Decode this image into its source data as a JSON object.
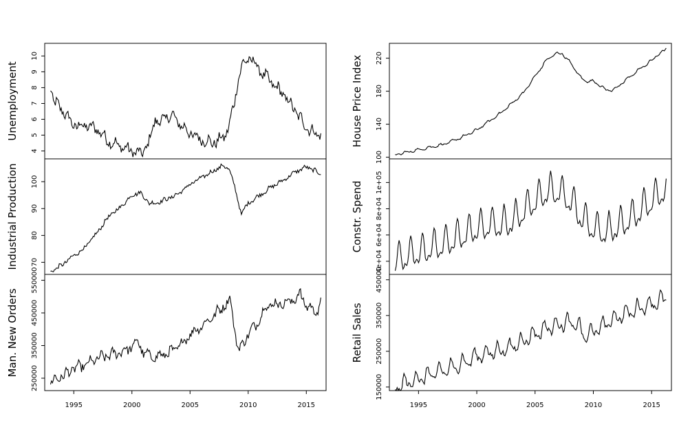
{
  "chart_data": [
    {
      "type": "line",
      "panel": "left-top",
      "ylabel": "Unemployment",
      "yticks": [
        "4",
        "5",
        "6",
        "7",
        "8",
        "9",
        "10"
      ],
      "ylim": [
        3.5,
        10.8
      ],
      "xlim": [
        1992.5,
        2016.7
      ],
      "x_start": 1993.0,
      "x_step": 0.083333,
      "x_range": [
        1993.0,
        2016.25
      ],
      "anchors": [
        [
          1993.0,
          8.0
        ],
        [
          1993.3,
          7.1
        ],
        [
          1994.0,
          6.6
        ],
        [
          1995.0,
          5.6
        ],
        [
          1996.0,
          5.6
        ],
        [
          1997.0,
          5.4
        ],
        [
          1998.0,
          4.6
        ],
        [
          1999.0,
          4.3
        ],
        [
          2000.0,
          4.0
        ],
        [
          2000.8,
          3.8
        ],
        [
          2001.5,
          4.6
        ],
        [
          2002.0,
          6.0
        ],
        [
          2002.5,
          5.8
        ],
        [
          2003.0,
          6.2
        ],
        [
          2003.5,
          6.2
        ],
        [
          2004.0,
          5.8
        ],
        [
          2005.0,
          5.1
        ],
        [
          2006.0,
          4.7
        ],
        [
          2007.0,
          4.5
        ],
        [
          2008.0,
          4.9
        ],
        [
          2008.5,
          6.0
        ],
        [
          2008.8,
          7.0
        ],
        [
          2009.2,
          8.8
        ],
        [
          2009.5,
          9.4
        ],
        [
          2010.0,
          9.8
        ],
        [
          2010.3,
          9.8
        ],
        [
          2011.0,
          9.1
        ],
        [
          2012.0,
          8.3
        ],
        [
          2013.0,
          7.6
        ],
        [
          2014.0,
          6.6
        ],
        [
          2015.0,
          5.5
        ],
        [
          2016.0,
          5.0
        ],
        [
          2016.25,
          5.1
        ]
      ],
      "noise": 0.28,
      "seasonal": 0.18,
      "color": "#000000"
    },
    {
      "type": "line",
      "panel": "left-middle",
      "ylabel": "Industrial Production",
      "yticks": [
        "70",
        "80",
        "90",
        "100"
      ],
      "ylim": [
        65.5,
        108.5
      ],
      "xlim": [
        1992.5,
        2016.7
      ],
      "x_start": 1993.0,
      "x_step": 0.083333,
      "x_range": [
        1993.0,
        2016.25
      ],
      "anchors": [
        [
          1993.0,
          66.5
        ],
        [
          1994.0,
          69.0
        ],
        [
          1995.0,
          72.5
        ],
        [
          1996.0,
          75.5
        ],
        [
          1997.0,
          81.0
        ],
        [
          1998.0,
          87.0
        ],
        [
          1999.0,
          90.5
        ],
        [
          2000.0,
          95.0
        ],
        [
          2000.7,
          96.0
        ],
        [
          2001.5,
          92.0
        ],
        [
          2002.0,
          92.0
        ],
        [
          2003.0,
          93.5
        ],
        [
          2004.0,
          95.5
        ],
        [
          2005.0,
          99.0
        ],
        [
          2006.0,
          101.5
        ],
        [
          2007.0,
          104.0
        ],
        [
          2007.8,
          106.0
        ],
        [
          2008.4,
          104.5
        ],
        [
          2008.9,
          97.0
        ],
        [
          2009.4,
          88.0
        ],
        [
          2010.0,
          92.0
        ],
        [
          2011.0,
          95.0
        ],
        [
          2012.0,
          98.0
        ],
        [
          2013.0,
          100.5
        ],
        [
          2014.0,
          103.5
        ],
        [
          2015.0,
          105.5
        ],
        [
          2015.5,
          104.5
        ],
        [
          2016.0,
          103.5
        ],
        [
          2016.25,
          103.0
        ]
      ],
      "noise": 0.7,
      "seasonal": 0.3,
      "color": "#000000"
    },
    {
      "type": "line",
      "panel": "left-bottom",
      "ylabel": "Man. New Orders",
      "yticks": [
        "250000",
        "350000",
        "450000",
        "550000"
      ],
      "ylim": [
        212000,
        568000
      ],
      "xlim": [
        1992.5,
        2016.7
      ],
      "x_start": 1993.0,
      "x_step": 0.083333,
      "x_range": [
        1993.0,
        2016.25
      ],
      "anchors": [
        [
          1993.0,
          240000
        ],
        [
          1994.0,
          255000
        ],
        [
          1995.0,
          280000
        ],
        [
          1996.0,
          290000
        ],
        [
          1997.0,
          310000
        ],
        [
          1998.0,
          320000
        ],
        [
          1999.0,
          330000
        ],
        [
          2000.0,
          345000
        ],
        [
          2000.5,
          365000
        ],
        [
          2001.0,
          325000
        ],
        [
          2002.0,
          315000
        ],
        [
          2003.0,
          325000
        ],
        [
          2004.0,
          345000
        ],
        [
          2005.0,
          385000
        ],
        [
          2006.0,
          410000
        ],
        [
          2007.0,
          440000
        ],
        [
          2008.0,
          475000
        ],
        [
          2008.5,
          490000
        ],
        [
          2008.9,
          380000
        ],
        [
          2009.2,
          335000
        ],
        [
          2010.0,
          385000
        ],
        [
          2010.8,
          420000
        ],
        [
          2011.5,
          470000
        ],
        [
          2012.0,
          475000
        ],
        [
          2013.0,
          480000
        ],
        [
          2014.0,
          490000
        ],
        [
          2014.5,
          510000
        ],
        [
          2015.0,
          470000
        ],
        [
          2016.0,
          455000
        ],
        [
          2016.25,
          480000
        ]
      ],
      "noise": 12000,
      "seasonal": 8000,
      "color": "#000000"
    },
    {
      "type": "line",
      "panel": "right-top",
      "ylabel": "House Price Index",
      "yticks": [
        "100",
        "140",
        "180",
        "220"
      ],
      "ylim": [
        98,
        238
      ],
      "xlim": [
        1992.5,
        2016.7
      ],
      "x_start": 1993.0,
      "x_step": 0.083333,
      "x_range": [
        1993.0,
        2016.25
      ],
      "anchors": [
        [
          1993.0,
          103
        ],
        [
          1994.0,
          106
        ],
        [
          1995.0,
          109
        ],
        [
          1996.0,
          112
        ],
        [
          1997.0,
          115
        ],
        [
          1998.0,
          120
        ],
        [
          1999.0,
          126
        ],
        [
          2000.0,
          133
        ],
        [
          2001.0,
          143
        ],
        [
          2002.0,
          153
        ],
        [
          2003.0,
          165
        ],
        [
          2004.0,
          178
        ],
        [
          2005.0,
          198
        ],
        [
          2006.0,
          218
        ],
        [
          2006.7,
          225
        ],
        [
          2007.3,
          226
        ],
        [
          2008.0,
          215
        ],
        [
          2008.6,
          203
        ],
        [
          2009.0,
          195
        ],
        [
          2009.5,
          192
        ],
        [
          2010.0,
          192
        ],
        [
          2010.5,
          188
        ],
        [
          2011.0,
          182
        ],
        [
          2011.5,
          181
        ],
        [
          2012.0,
          184
        ],
        [
          2012.5,
          190
        ],
        [
          2013.0,
          196
        ],
        [
          2014.0,
          207
        ],
        [
          2015.0,
          217
        ],
        [
          2015.5,
          224
        ],
        [
          2016.0,
          228
        ],
        [
          2016.25,
          232
        ]
      ],
      "noise": 0.7,
      "seasonal": 1.2,
      "color": "#000000"
    },
    {
      "type": "line",
      "panel": "right-middle",
      "ylabel": "Constr. Spend",
      "yticks": [
        "4e+04",
        "6e+04",
        "8e+04",
        "1e+05"
      ],
      "ylim": [
        30000,
        118000
      ],
      "xlim": [
        1992.5,
        2016.7
      ],
      "x_start": 1993.0,
      "x_step": 0.083333,
      "x_range": [
        1993.0,
        2016.25
      ],
      "anchors": [
        [
          1993.0,
          40000
        ],
        [
          1994.0,
          44000
        ],
        [
          1995.0,
          46500
        ],
        [
          1996.0,
          49500
        ],
        [
          1997.0,
          52500
        ],
        [
          1998.0,
          56500
        ],
        [
          1999.0,
          60500
        ],
        [
          2000.0,
          64500
        ],
        [
          2001.0,
          67000
        ],
        [
          2002.0,
          67500
        ],
        [
          2003.0,
          70000
        ],
        [
          2004.0,
          78000
        ],
        [
          2005.0,
          86000
        ],
        [
          2006.0,
          93000
        ],
        [
          2007.0,
          93000
        ],
        [
          2008.0,
          86000
        ],
        [
          2009.0,
          73000
        ],
        [
          2010.0,
          65000
        ],
        [
          2011.0,
          62000
        ],
        [
          2012.0,
          66000
        ],
        [
          2013.0,
          71000
        ],
        [
          2014.0,
          78000
        ],
        [
          2015.0,
          86000
        ],
        [
          2016.0,
          93000
        ],
        [
          2016.25,
          92000
        ]
      ],
      "noise": 1000,
      "seasonal": 10000,
      "color": "#000000"
    },
    {
      "type": "line",
      "panel": "right-bottom",
      "ylabel": "Retail Sales",
      "yticks": [
        "150000",
        "250000",
        "350000",
        "450000"
      ],
      "ylim": [
        140000,
        465000
      ],
      "xlim": [
        1992.5,
        2016.7
      ],
      "x_start": 1993.0,
      "x_step": 0.083333,
      "x_range": [
        1993.0,
        2016.25
      ],
      "anchors": [
        [
          1993.0,
          148000
        ],
        [
          1994.0,
          162000
        ],
        [
          1995.0,
          173000
        ],
        [
          1996.0,
          185000
        ],
        [
          1997.0,
          195000
        ],
        [
          1998.0,
          205000
        ],
        [
          1999.0,
          220000
        ],
        [
          2000.0,
          236000
        ],
        [
          2001.0,
          246000
        ],
        [
          2002.0,
          252000
        ],
        [
          2003.0,
          262000
        ],
        [
          2004.0,
          280000
        ],
        [
          2005.0,
          298000
        ],
        [
          2006.0,
          315000
        ],
        [
          2007.0,
          325000
        ],
        [
          2008.0,
          330000
        ],
        [
          2008.8,
          320000
        ],
        [
          2009.2,
          290000
        ],
        [
          2010.0,
          305000
        ],
        [
          2011.0,
          325000
        ],
        [
          2012.0,
          345000
        ],
        [
          2013.0,
          358000
        ],
        [
          2014.0,
          372000
        ],
        [
          2015.0,
          382000
        ],
        [
          2016.0,
          395000
        ],
        [
          2016.25,
          400000
        ]
      ],
      "noise": 6000,
      "seasonal": 18000,
      "color": "#000000"
    }
  ],
  "xticks": [
    "1995",
    "2000",
    "2005",
    "2010",
    "2015"
  ],
  "xtick_values": [
    1995,
    2000,
    2005,
    2010,
    2015
  ]
}
